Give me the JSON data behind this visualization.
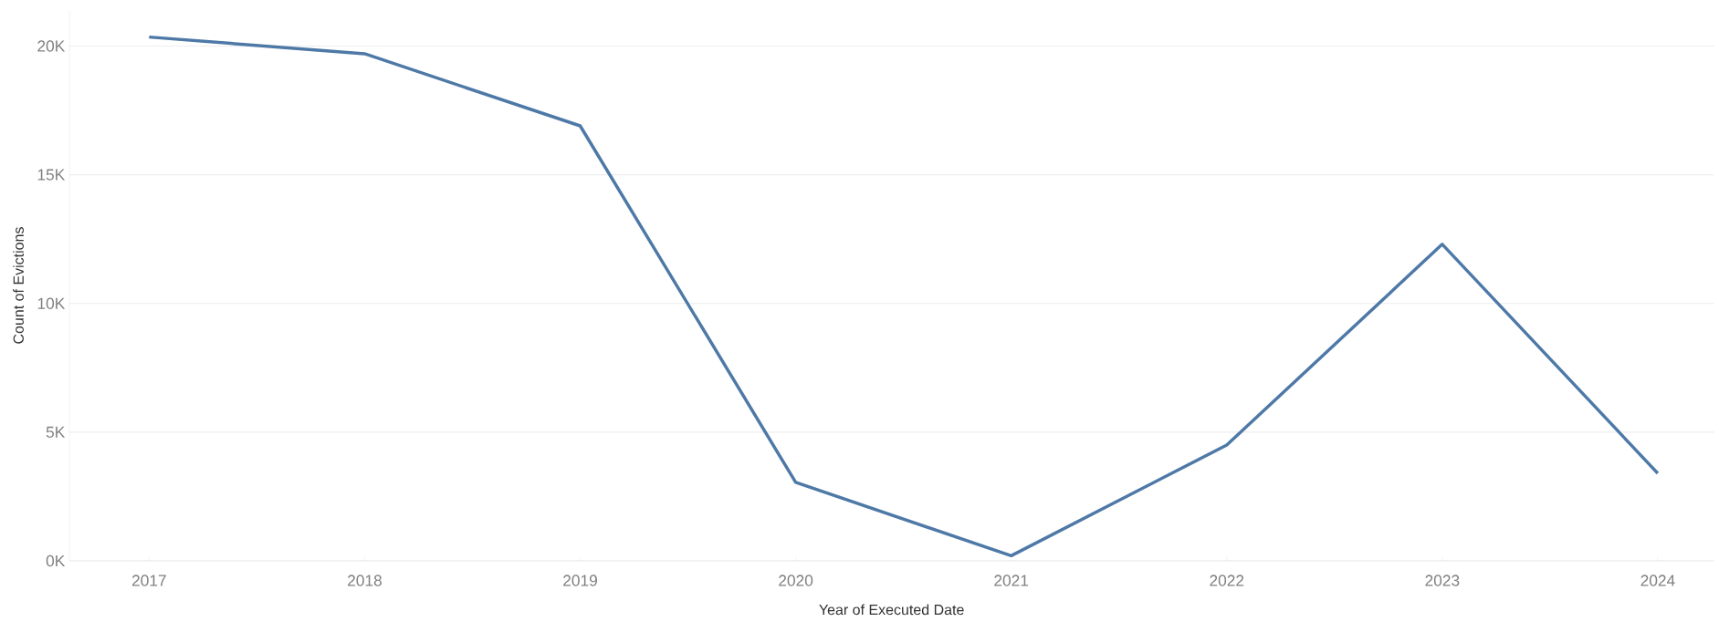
{
  "chart_data": {
    "type": "line",
    "xlabel": "Year of Executed Date",
    "ylabel": "Count of Evictions",
    "x": [
      2017,
      2018,
      2019,
      2020,
      2021,
      2022,
      2023,
      2024
    ],
    "series": [
      {
        "color": "#4e79a7",
        "values": [
          20350,
          19700,
          16900,
          3050,
          200,
          4500,
          12300,
          3400
        ]
      }
    ],
    "xlim": [
      2016.63,
      2024.26
    ],
    "ylim": [
      0,
      21400
    ],
    "xticks": [
      2017,
      2018,
      2019,
      2020,
      2021,
      2022,
      2023,
      2024
    ],
    "yticks": [
      {
        "value": 0,
        "label": "0K"
      },
      {
        "value": 5000,
        "label": "5K"
      },
      {
        "value": 10000,
        "label": "10K"
      },
      {
        "value": 15000,
        "label": "15K"
      },
      {
        "value": 20000,
        "label": "20K"
      }
    ],
    "grid": "y",
    "marker": "none",
    "line_style": "solid"
  }
}
